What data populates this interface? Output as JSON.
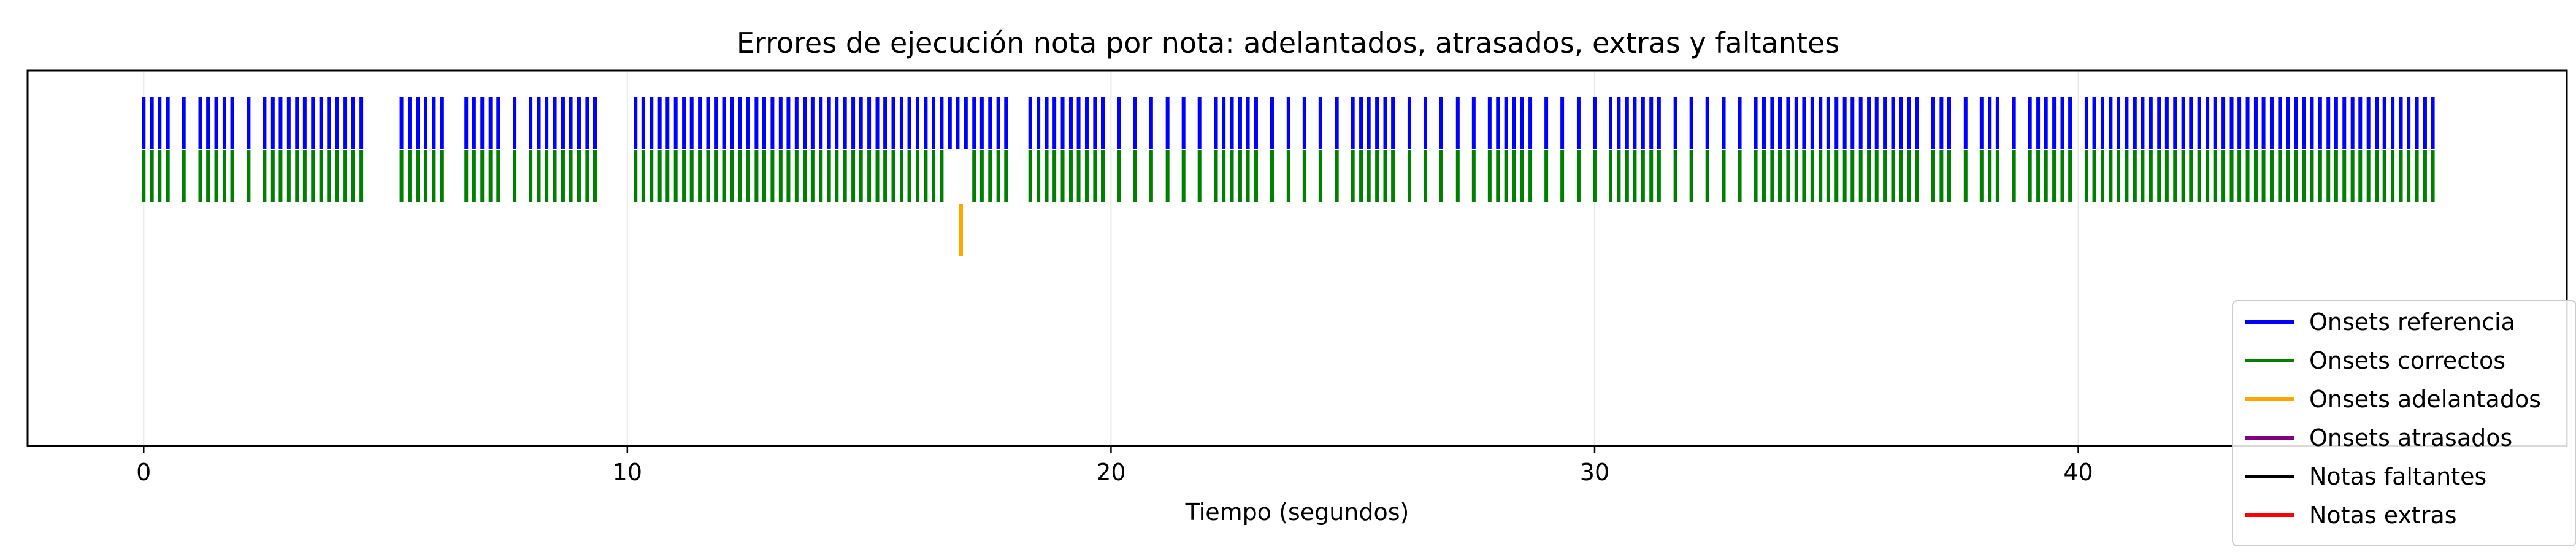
{
  "chart_data": {
    "type": "event",
    "title": "Errores de ejecución nota por nota: adelantados, atrasados, extras y faltantes",
    "xlabel": "Tiempo (segundos)",
    "ylabel": "",
    "xlim": [
      -2.4,
      50.1
    ],
    "xticks": [
      0,
      10,
      20,
      30,
      40
    ],
    "grid": true,
    "legend_position": "lower-right",
    "series": [
      {
        "name": "Onsets referencia",
        "color": "#0000ff",
        "x": [
          0.0,
          0.17,
          0.33,
          0.5,
          0.83,
          1.17,
          1.33,
          1.5,
          1.67,
          1.83,
          2.17,
          2.5,
          2.67,
          2.83,
          3.0,
          3.17,
          3.33,
          3.5,
          3.67,
          3.83,
          4.0,
          4.17,
          4.33,
          4.5,
          5.33,
          5.5,
          5.67,
          5.83,
          6.0,
          6.17,
          6.67,
          6.83,
          7.0,
          7.17,
          7.33,
          7.67,
          8.0,
          8.17,
          8.33,
          8.5,
          8.67,
          8.83,
          9.0,
          9.17,
          9.33,
          10.17,
          10.33,
          10.5,
          10.67,
          10.83,
          11.0,
          11.17,
          11.33,
          11.5,
          11.67,
          11.83,
          12.0,
          12.17,
          12.33,
          12.5,
          12.67,
          12.83,
          13.0,
          13.17,
          13.33,
          13.5,
          13.67,
          13.83,
          14.0,
          14.17,
          14.33,
          14.5,
          14.67,
          14.83,
          15.0,
          15.17,
          15.33,
          15.5,
          15.67,
          15.83,
          16.0,
          16.17,
          16.33,
          16.5,
          16.67,
          16.83,
          17.0,
          17.17,
          17.33,
          17.5,
          17.67,
          17.83,
          18.33,
          18.5,
          18.67,
          18.83,
          19.0,
          19.17,
          19.33,
          19.5,
          19.67,
          19.83,
          20.17,
          20.5,
          20.83,
          21.17,
          21.5,
          21.83,
          22.17,
          22.33,
          22.5,
          22.67,
          22.83,
          23.0,
          23.33,
          23.67,
          24.0,
          24.33,
          24.67,
          25.0,
          25.17,
          25.33,
          25.5,
          25.67,
          25.83,
          26.17,
          26.5,
          26.83,
          27.17,
          27.5,
          27.83,
          28.0,
          28.17,
          28.33,
          28.5,
          28.67,
          29.0,
          29.33,
          29.67,
          30.0,
          30.33,
          30.5,
          30.67,
          30.83,
          31.0,
          31.17,
          31.33,
          31.67,
          32.0,
          32.33,
          32.67,
          33.0,
          33.33,
          33.5,
          33.67,
          33.83,
          34.0,
          34.17,
          34.33,
          34.5,
          34.67,
          34.83,
          35.0,
          35.17,
          35.33,
          35.5,
          35.67,
          35.83,
          36.0,
          36.17,
          36.33,
          36.5,
          36.67,
          37.0,
          37.17,
          37.33,
          37.67,
          38.0,
          38.17,
          38.33,
          38.67,
          39.0,
          39.17,
          39.33,
          39.5,
          39.67,
          39.83,
          40.17,
          40.33,
          40.5,
          40.67,
          40.83,
          41.0,
          41.17,
          41.33,
          41.5,
          41.67,
          41.83,
          42.0,
          42.17,
          42.33,
          42.5,
          42.67,
          42.83,
          43.0,
          43.17,
          43.33,
          43.5,
          43.67,
          43.83,
          44.0,
          44.17,
          44.33,
          44.5,
          44.67,
          44.83,
          45.0,
          45.17,
          45.33,
          45.5,
          45.67,
          45.83,
          46.0,
          46.17,
          46.33,
          46.5,
          46.67,
          46.83,
          47.0,
          47.17,
          47.33
        ]
      },
      {
        "name": "Onsets correctos",
        "color": "#008000",
        "x": [
          0.0,
          0.17,
          0.33,
          0.5,
          0.83,
          1.17,
          1.33,
          1.5,
          1.67,
          1.83,
          2.17,
          2.5,
          2.67,
          2.83,
          3.0,
          3.17,
          3.33,
          3.5,
          3.67,
          3.83,
          4.0,
          4.17,
          4.33,
          4.5,
          5.33,
          5.5,
          5.67,
          5.83,
          6.0,
          6.17,
          6.67,
          6.83,
          7.0,
          7.17,
          7.33,
          7.67,
          8.0,
          8.17,
          8.33,
          8.5,
          8.67,
          8.83,
          9.0,
          9.17,
          9.33,
          10.17,
          10.33,
          10.5,
          10.67,
          10.83,
          11.0,
          11.17,
          11.33,
          11.5,
          11.67,
          11.83,
          12.0,
          12.17,
          12.33,
          12.5,
          12.67,
          12.83,
          13.0,
          13.17,
          13.33,
          13.5,
          13.67,
          13.83,
          14.0,
          14.17,
          14.33,
          14.5,
          14.67,
          14.83,
          15.0,
          15.17,
          15.33,
          15.5,
          15.67,
          15.83,
          16.0,
          16.17,
          16.33,
          16.5,
          17.17,
          17.33,
          17.5,
          17.67,
          17.83,
          18.33,
          18.5,
          18.67,
          18.83,
          19.0,
          19.17,
          19.33,
          19.5,
          19.67,
          19.83,
          20.17,
          20.5,
          20.83,
          21.17,
          21.5,
          21.83,
          22.17,
          22.33,
          22.5,
          22.67,
          22.83,
          23.0,
          23.33,
          23.67,
          24.0,
          24.33,
          24.67,
          25.0,
          25.17,
          25.33,
          25.5,
          25.67,
          25.83,
          26.17,
          26.5,
          26.83,
          27.17,
          27.5,
          27.83,
          28.0,
          28.17,
          28.33,
          28.5,
          28.67,
          29.0,
          29.33,
          29.67,
          30.0,
          30.33,
          30.5,
          30.67,
          30.83,
          31.0,
          31.17,
          31.33,
          31.67,
          32.0,
          32.33,
          32.67,
          33.0,
          33.33,
          33.5,
          33.67,
          33.83,
          34.0,
          34.17,
          34.33,
          34.5,
          34.67,
          34.83,
          35.0,
          35.17,
          35.33,
          35.5,
          35.67,
          35.83,
          36.0,
          36.17,
          36.33,
          36.5,
          36.67,
          37.0,
          37.17,
          37.33,
          37.67,
          38.0,
          38.17,
          38.33,
          38.67,
          39.0,
          39.17,
          39.33,
          39.5,
          39.67,
          39.83,
          40.17,
          40.33,
          40.5,
          40.67,
          40.83,
          41.0,
          41.17,
          41.33,
          41.5,
          41.67,
          41.83,
          42.0,
          42.17,
          42.33,
          42.5,
          42.67,
          42.83,
          43.0,
          43.17,
          43.33,
          43.5,
          43.67,
          43.83,
          44.0,
          44.17,
          44.33,
          44.5,
          44.67,
          44.83,
          45.0,
          45.17,
          45.33,
          45.5,
          45.67,
          45.83,
          46.0,
          46.17,
          46.33,
          46.5,
          46.67,
          46.83,
          47.0,
          47.17,
          47.33
        ]
      },
      {
        "name": "Onsets adelantados",
        "color": "#ffa500",
        "x": [
          16.9
        ]
      },
      {
        "name": "Onsets atrasados",
        "color": "#800080",
        "x": []
      },
      {
        "name": "Notas faltantes",
        "color": "#000000",
        "x": []
      },
      {
        "name": "Notas extras",
        "color": "#ff0000",
        "x": []
      }
    ]
  }
}
